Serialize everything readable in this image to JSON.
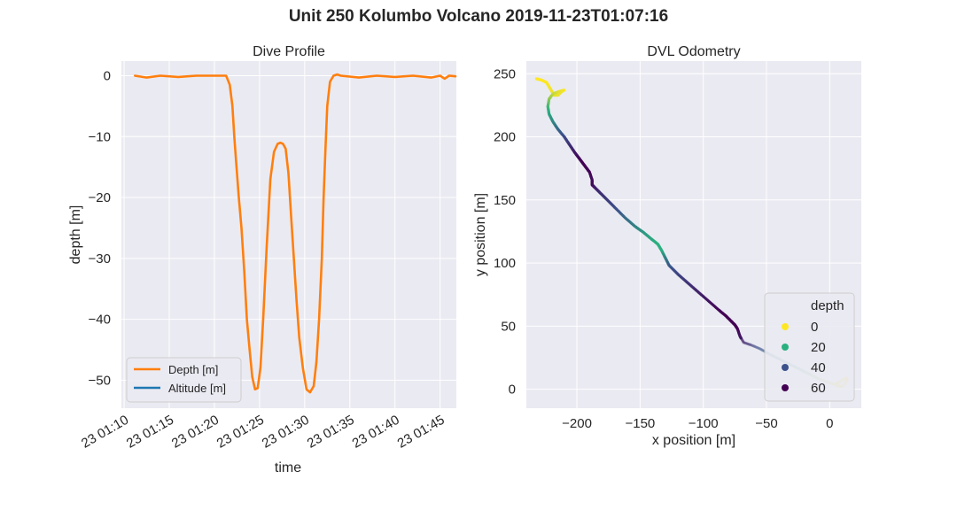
{
  "figure": {
    "title": "Unit 250 Kolumbo Volcano 2019-11-23T01:07:16"
  },
  "chart_data": [
    {
      "type": "line",
      "title": "Dive Profile",
      "xlabel": "time",
      "ylabel": "depth [m]",
      "x_ticks": [
        "23 01:10",
        "23 01:15",
        "23 01:20",
        "23 01:25",
        "23 01:30",
        "23 01:35",
        "23 01:40",
        "23 01:45"
      ],
      "x_tick_minutes": [
        10,
        15,
        20,
        25,
        30,
        35,
        40,
        45
      ],
      "xlim_minutes": [
        9.7,
        46.8
      ],
      "ylim": [
        -54.6,
        2.4
      ],
      "y_ticks": [
        0,
        -10,
        -20,
        -30,
        -40,
        -50
      ],
      "grid": true,
      "legend_position": "lower-left",
      "legend": [
        "Depth [m]",
        "Altitude [m]"
      ],
      "series": [
        {
          "name": "Depth [m]",
          "color": "#ff7f0e",
          "x_minutes": [
            11.2,
            12.5,
            14,
            16,
            18,
            20,
            21.3,
            21.7,
            22.0,
            22.2,
            22.4,
            22.7,
            23.0,
            23.3,
            23.6,
            23.9,
            24.2,
            24.5,
            24.8,
            25.1,
            25.4,
            25.8,
            26.2,
            26.6,
            27.0,
            27.3,
            27.6,
            27.9,
            28.2,
            28.5,
            28.8,
            29.1,
            29.4,
            29.8,
            30.2,
            30.6,
            31.0,
            31.3,
            31.6,
            31.9,
            32.1,
            32.3,
            32.5,
            32.8,
            33.2,
            33.6,
            34,
            36,
            38,
            40,
            42,
            44,
            45.0,
            45.5,
            46.0,
            46.7
          ],
          "y": [
            0,
            -0.3,
            0,
            -0.2,
            0,
            0,
            0,
            -1.5,
            -5,
            -10,
            -14,
            -20,
            -25,
            -32,
            -40,
            -45,
            -49.5,
            -51.5,
            -51.3,
            -48,
            -40,
            -28,
            -17,
            -12.5,
            -11.2,
            -11,
            -11.2,
            -12,
            -16,
            -23,
            -30,
            -37,
            -43,
            -48,
            -51.5,
            -52,
            -51,
            -47,
            -40,
            -30,
            -20,
            -12,
            -5,
            -1,
            0,
            0.2,
            0,
            -0.3,
            0,
            -0.2,
            0,
            -0.3,
            0,
            -0.5,
            0,
            -0.1
          ]
        },
        {
          "name": "Altitude [m]",
          "color": "#1f77b4",
          "x_minutes": [],
          "y": []
        }
      ]
    },
    {
      "type": "scatter",
      "title": "DVL Odometry",
      "xlabel": "x position [m]",
      "ylabel": "y position [m]",
      "xlim": [
        -240,
        25
      ],
      "ylim": [
        -15,
        260
      ],
      "x_ticks": [
        -200,
        -150,
        -100,
        -50,
        0
      ],
      "y_ticks": [
        0,
        50,
        100,
        150,
        200,
        250
      ],
      "grid": true,
      "legend_position": "lower-right",
      "legend_title": "depth",
      "legend": [
        {
          "label": "0",
          "color": "#fde725"
        },
        {
          "label": "20",
          "color": "#2ab07f"
        },
        {
          "label": "40",
          "color": "#3b528b"
        },
        {
          "label": "60",
          "color": "#440154"
        }
      ],
      "track": {
        "x": [
          -232,
          -228,
          -224,
          -221,
          -218,
          -215,
          -212,
          -210,
          -214,
          -219,
          -222,
          -223,
          -222,
          -219,
          -215,
          -210,
          -206,
          -202,
          -199,
          -196,
          -193,
          -190,
          -188,
          -188,
          -186,
          -182,
          -177,
          -170,
          -162,
          -154,
          -147,
          -141,
          -136,
          -133,
          -130,
          -127,
          -120,
          -112,
          -104,
          -96,
          -88,
          -82,
          -78,
          -75,
          -73,
          -71,
          -68,
          -62,
          -55,
          -48,
          -40,
          -32,
          -24,
          -16,
          -8,
          0,
          6,
          10,
          14,
          13,
          8,
          4
        ],
        "y": [
          246,
          245,
          243,
          238,
          233,
          233,
          236,
          237,
          236,
          234,
          230,
          224,
          218,
          212,
          206,
          200,
          194,
          188,
          184,
          180,
          176,
          172,
          166,
          162,
          160,
          156,
          151,
          144,
          136,
          129,
          124,
          119,
          115,
          110,
          104,
          98,
          91,
          84,
          77,
          70,
          63,
          58,
          54,
          51,
          48,
          42,
          37,
          35,
          32,
          28,
          24,
          20,
          16,
          12,
          8,
          5,
          3,
          2,
          7,
          9,
          6,
          4
        ],
        "depth": [
          0,
          0,
          0,
          1,
          2,
          2,
          1,
          0,
          2,
          5,
          10,
          17,
          22,
          28,
          35,
          42,
          50,
          57,
          62,
          66,
          66,
          65,
          62,
          64,
          58,
          52,
          48,
          42,
          35,
          30,
          25,
          22,
          20,
          20,
          30,
          38,
          45,
          50,
          55,
          60,
          64,
          66,
          66,
          66,
          66,
          60,
          55,
          48,
          40,
          35,
          30,
          25,
          20,
          15,
          10,
          5,
          2,
          1,
          0,
          0,
          1,
          2
        ]
      }
    }
  ]
}
